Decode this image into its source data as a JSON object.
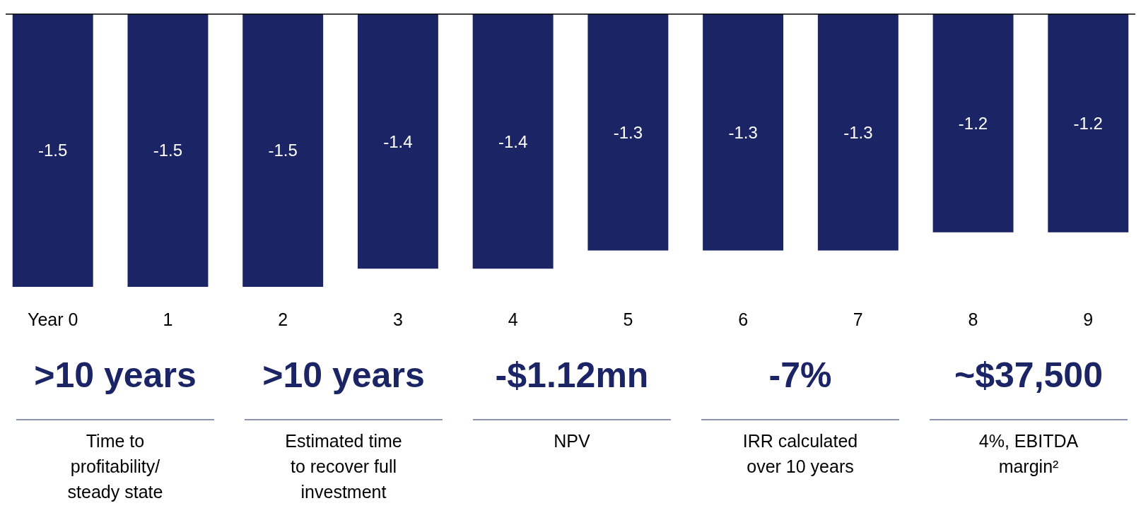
{
  "chart_data": [
    {
      "type": "bar",
      "categories": [
        "Year 0",
        "1",
        "2",
        "3",
        "4",
        "5",
        "6",
        "7",
        "8",
        "9"
      ],
      "series": [
        {
          "color": "#1b2464",
          "values": [
            -1.5,
            -1.5,
            -1.5,
            -1.4,
            -1.4,
            -1.3,
            -1.3,
            -1.3,
            -1.2,
            -1.2
          ]
        }
      ],
      "data_labels": true,
      "tick_labels": "x"
    },
    {
      "type": "other",
      "categories": [
        ">10 years",
        ">10 years",
        "-$1.12mn",
        "-7%",
        "~$37,500"
      ],
      "annotations": [
        "Time to profitability/ steady state",
        "Estimated time to recover full investment",
        "NPV",
        "IRR calculated over 10 years",
        "4%, EBITDA margin²"
      ]
    }
  ]
}
